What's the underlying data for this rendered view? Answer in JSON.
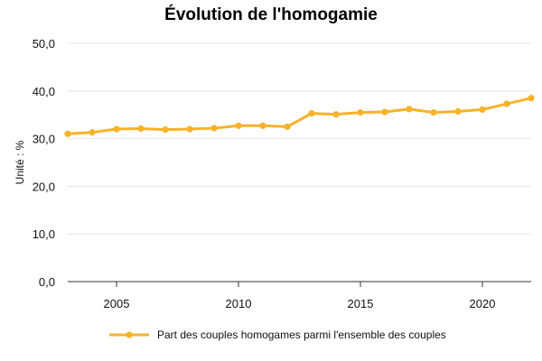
{
  "chart_data": {
    "type": "line",
    "title": "Évolution de l'homogamie",
    "ylabel": "Unité : %",
    "xlabel": "",
    "ylim": [
      0,
      50
    ],
    "yticks": [
      0,
      10,
      20,
      30,
      40,
      50
    ],
    "ytick_labels": [
      "0,0",
      "10,0",
      "20,0",
      "30,0",
      "40,0",
      "50,0"
    ],
    "xlim": [
      2003,
      2022
    ],
    "xticks": [
      2005,
      2010,
      2015,
      2020
    ],
    "xtick_labels": [
      "2005",
      "2010",
      "2015",
      "2020"
    ],
    "grid": true,
    "legend_position": "bottom",
    "series": [
      {
        "name": "Part des couples homogames parmi l'ensemble des couples",
        "color": "#F8B22A",
        "x": [
          2003,
          2004,
          2005,
          2006,
          2007,
          2008,
          2009,
          2010,
          2011,
          2012,
          2013,
          2014,
          2015,
          2016,
          2017,
          2018,
          2019,
          2020,
          2021,
          2022
        ],
        "y": [
          31.0,
          31.3,
          32.0,
          32.1,
          31.9,
          32.0,
          32.2,
          32.7,
          32.7,
          32.5,
          35.3,
          35.1,
          35.5,
          35.6,
          36.2,
          35.5,
          35.7,
          36.1,
          37.3,
          38.5
        ]
      }
    ]
  }
}
